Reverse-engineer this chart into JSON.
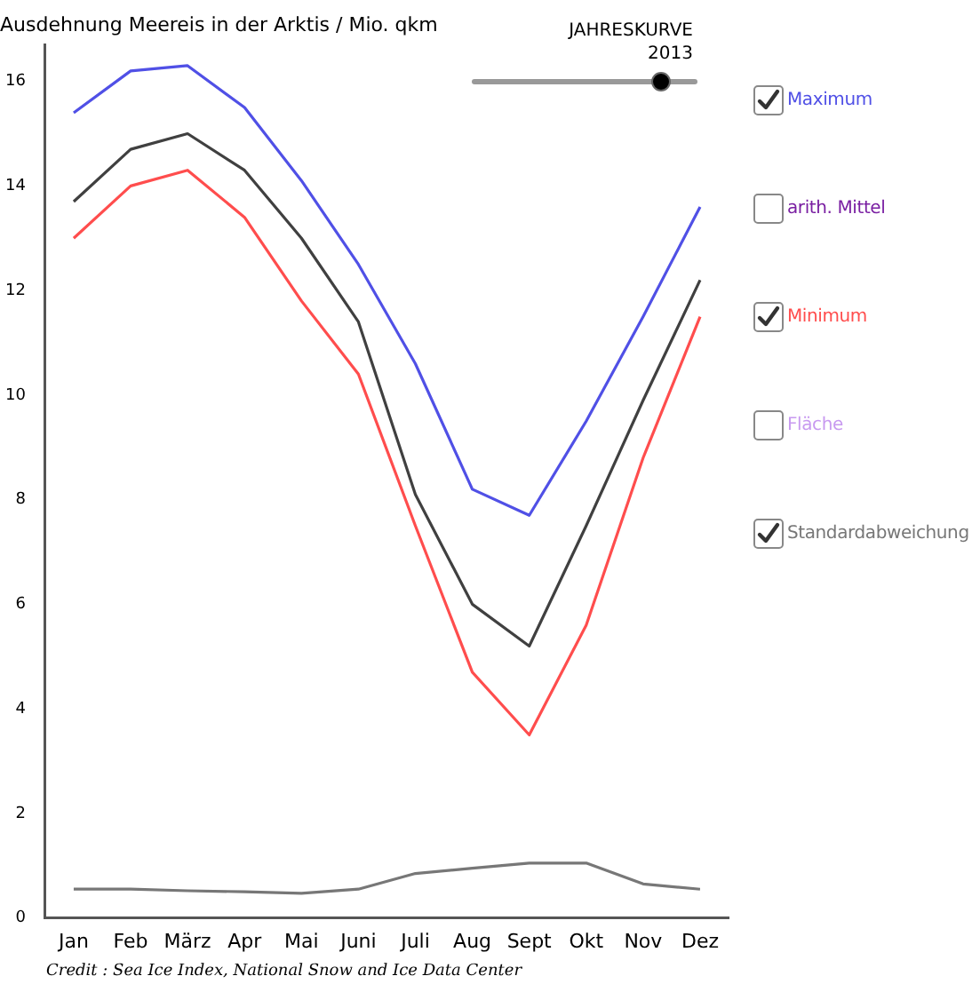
{
  "chart_data": {
    "type": "line",
    "title": "Ausdehnung Meereis in der Arktis / Mio. qkm",
    "categories": [
      "Jan",
      "Feb",
      "März",
      "Apr",
      "Mai",
      "Juni",
      "Juli",
      "Aug",
      "Sept",
      "Okt",
      "Nov",
      "Dez"
    ],
    "series": [
      {
        "name": "Maximum",
        "color": "#5050e6",
        "values": [
          15.4,
          16.2,
          16.3,
          15.5,
          14.1,
          12.5,
          10.6,
          8.2,
          7.7,
          9.5,
          11.5,
          13.6
        ]
      },
      {
        "color": "#404040",
        "values": [
          13.7,
          14.7,
          15.0,
          14.3,
          13.0,
          11.4,
          8.1,
          6.0,
          5.2,
          7.5,
          9.9,
          12.2
        ]
      },
      {
        "name": "Minimum",
        "color": "#ff4d4d",
        "values": [
          13.0,
          14.0,
          14.3,
          13.4,
          11.8,
          10.4,
          7.5,
          4.7,
          3.5,
          5.6,
          8.8,
          11.5
        ]
      },
      {
        "name": "Standardabweichung",
        "color": "#777777",
        "values": [
          0.55,
          0.55,
          0.52,
          0.5,
          0.47,
          0.55,
          0.85,
          0.95,
          1.05,
          1.05,
          0.65,
          0.55
        ]
      }
    ],
    "ylim": [
      0,
      16.7
    ],
    "yticks": [
      0,
      2,
      4,
      6,
      8,
      10,
      12,
      14,
      16
    ],
    "grid": false,
    "legend": "right",
    "marker": "none",
    "line_style": "solid",
    "annotations": [
      "JAHRESKURVE",
      "2013",
      "arith. Mittel",
      "Fläche",
      "Credit :  Sea Ice Index, National Snow and Ice Data Center"
    ]
  }
}
